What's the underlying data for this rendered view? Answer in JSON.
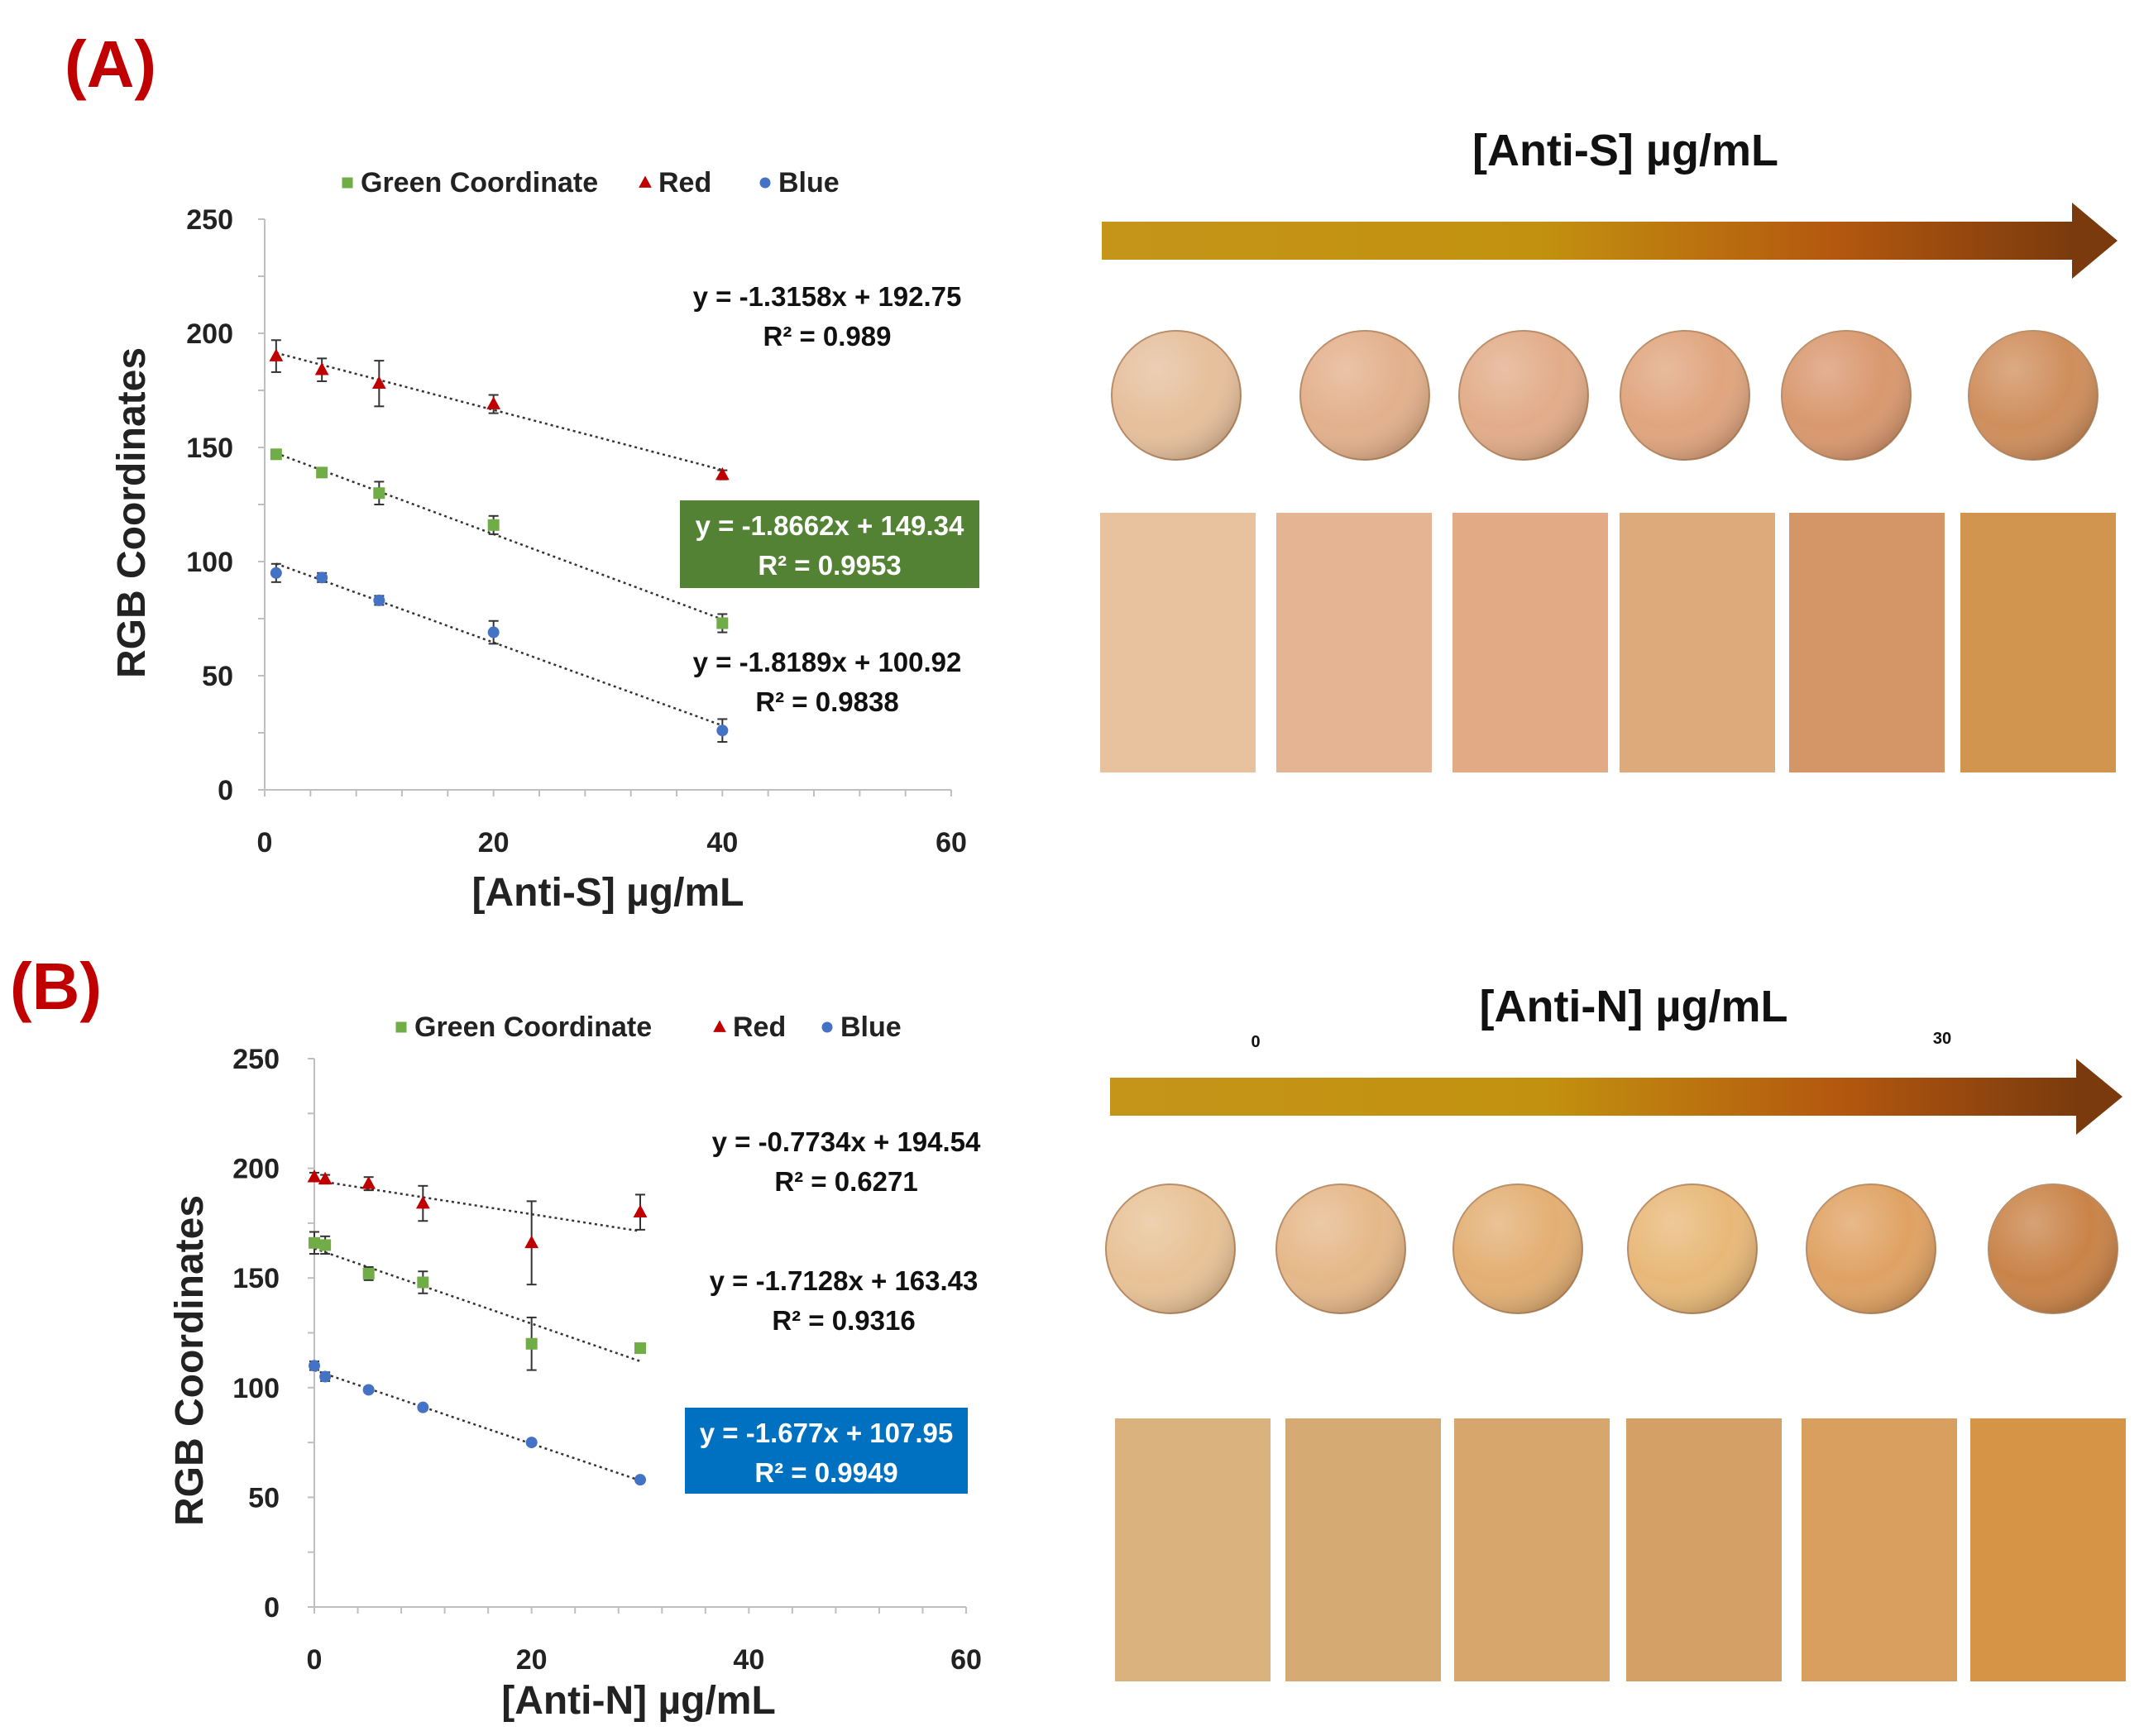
{
  "panels": {
    "A": {
      "label": "(A)",
      "conc_title": "[Anti-S] µg/mL",
      "arrow_labels": [],
      "legend": [
        {
          "name": "Green Coordinate",
          "marker": "square",
          "color": "#70ad47"
        },
        {
          "name": "Red",
          "marker": "triangle",
          "color": "#c00000"
        },
        {
          "name": "Blue",
          "marker": "circle",
          "color": "#4472c4"
        }
      ],
      "equations": [
        {
          "series": "Red",
          "eq": "y = -1.3158x + 192.75",
          "r2": "R² = 0.989",
          "highlight": false,
          "box_color": null
        },
        {
          "series": "Green Coordinate",
          "eq": "y = -1.8662x + 149.34",
          "r2": "R² = 0.9953",
          "highlight": true,
          "box_color": "#548235"
        },
        {
          "series": "Blue",
          "eq": "y = -1.8189x + 100.92",
          "r2": "R² = 0.9838",
          "highlight": false,
          "box_color": null
        }
      ],
      "swatches": {
        "circles": [
          "#e6bf9c",
          "#e3b08c",
          "#e2ac89",
          "#e0a57e",
          "#d9986f",
          "#cf8e5c"
        ],
        "rects": [
          "#e8c29e",
          "#e5b492",
          "#e2ab86",
          "#ddaa7c",
          "#d49666",
          "#d2954f"
        ]
      }
    },
    "B": {
      "label": "(B)",
      "conc_title": "[Anti-N] µg/mL",
      "arrow_labels": [
        "0",
        "30"
      ],
      "legend": [
        {
          "name": "Green Coordinate",
          "marker": "square",
          "color": "#70ad47"
        },
        {
          "name": "Red",
          "marker": "triangle",
          "color": "#c00000"
        },
        {
          "name": "Blue",
          "marker": "circle",
          "color": "#4472c4"
        }
      ],
      "equations": [
        {
          "series": "Red",
          "eq": "y = -0.7734x + 194.54",
          "r2": "R² = 0.6271",
          "highlight": false,
          "box_color": null
        },
        {
          "series": "Green Coordinate",
          "eq": "y = -1.7128x + 163.43",
          "r2": "R² = 0.9316",
          "highlight": false,
          "box_color": null
        },
        {
          "series": "Blue",
          "eq": "y = -1.677x + 107.95",
          "r2": "R² = 0.9949",
          "highlight": true,
          "box_color": "#0070c0"
        }
      ],
      "swatches": {
        "circles": [
          "#e8c296",
          "#e5b889",
          "#e3af73",
          "#e8b878",
          "#e0a263",
          "#c98348"
        ],
        "rects": [
          "#d9b27e",
          "#d5ab73",
          "#d6a66d",
          "#d4a066",
          "#d99f5f",
          "#d69446"
        ]
      }
    }
  },
  "chart_data": [
    {
      "type": "scatter",
      "title": "",
      "xlabel": "[Anti-S] µg/mL",
      "ylabel": "RGB Coordinates",
      "xlim": [
        0,
        60
      ],
      "ylim": [
        0,
        250
      ],
      "xticks": [
        "0",
        "20",
        "40",
        "60"
      ],
      "yticks": [
        "0",
        "50",
        "100",
        "150",
        "200",
        "250"
      ],
      "legend_position": "top",
      "series": [
        {
          "name": "Green Coordinate",
          "x": [
            1,
            5,
            10,
            20,
            40
          ],
          "y": [
            147,
            139,
            130,
            116,
            73
          ],
          "err": [
            2,
            2,
            5,
            4,
            4
          ],
          "trend": [
            -1.8662,
            149.34
          ]
        },
        {
          "name": "Red",
          "x": [
            1,
            5,
            10,
            20,
            40
          ],
          "y": [
            190,
            184,
            178,
            169,
            138
          ],
          "err": [
            7,
            5,
            10,
            4,
            2
          ],
          "trend": [
            -1.3158,
            192.75
          ]
        },
        {
          "name": "Blue",
          "x": [
            1,
            5,
            10,
            20,
            40
          ],
          "y": [
            95,
            93,
            83,
            69,
            26
          ],
          "err": [
            4,
            2,
            2,
            5,
            5
          ],
          "trend": [
            -1.8189,
            100.92
          ]
        }
      ]
    },
    {
      "type": "scatter",
      "title": "",
      "xlabel": "[Anti-N] µg/mL",
      "ylabel": "RGB Coordinates",
      "xlim": [
        0,
        60
      ],
      "ylim": [
        0,
        250
      ],
      "xticks": [
        "0",
        "20",
        "40",
        "60"
      ],
      "yticks": [
        "0",
        "50",
        "100",
        "150",
        "200",
        "250"
      ],
      "legend_position": "top",
      "series": [
        {
          "name": "Green Coordinate",
          "x": [
            0,
            1,
            5,
            10,
            20,
            30
          ],
          "y": [
            166,
            165,
            152,
            148,
            120,
            118
          ],
          "err": [
            5,
            4,
            3,
            5,
            12,
            2
          ],
          "trend": [
            -1.7128,
            163.43
          ]
        },
        {
          "name": "Red",
          "x": [
            0,
            1,
            5,
            10,
            20,
            30
          ],
          "y": [
            196,
            195,
            193,
            184,
            166,
            180
          ],
          "err": [
            2,
            2,
            3,
            8,
            19,
            8
          ],
          "trend": [
            -0.7734,
            194.54
          ]
        },
        {
          "name": "Blue",
          "x": [
            0,
            1,
            5,
            10,
            20,
            30
          ],
          "y": [
            110,
            105,
            99,
            91,
            75,
            58
          ],
          "err": [
            2,
            2,
            1,
            1,
            1,
            1
          ],
          "trend": [
            -1.677,
            107.95
          ]
        }
      ]
    }
  ]
}
